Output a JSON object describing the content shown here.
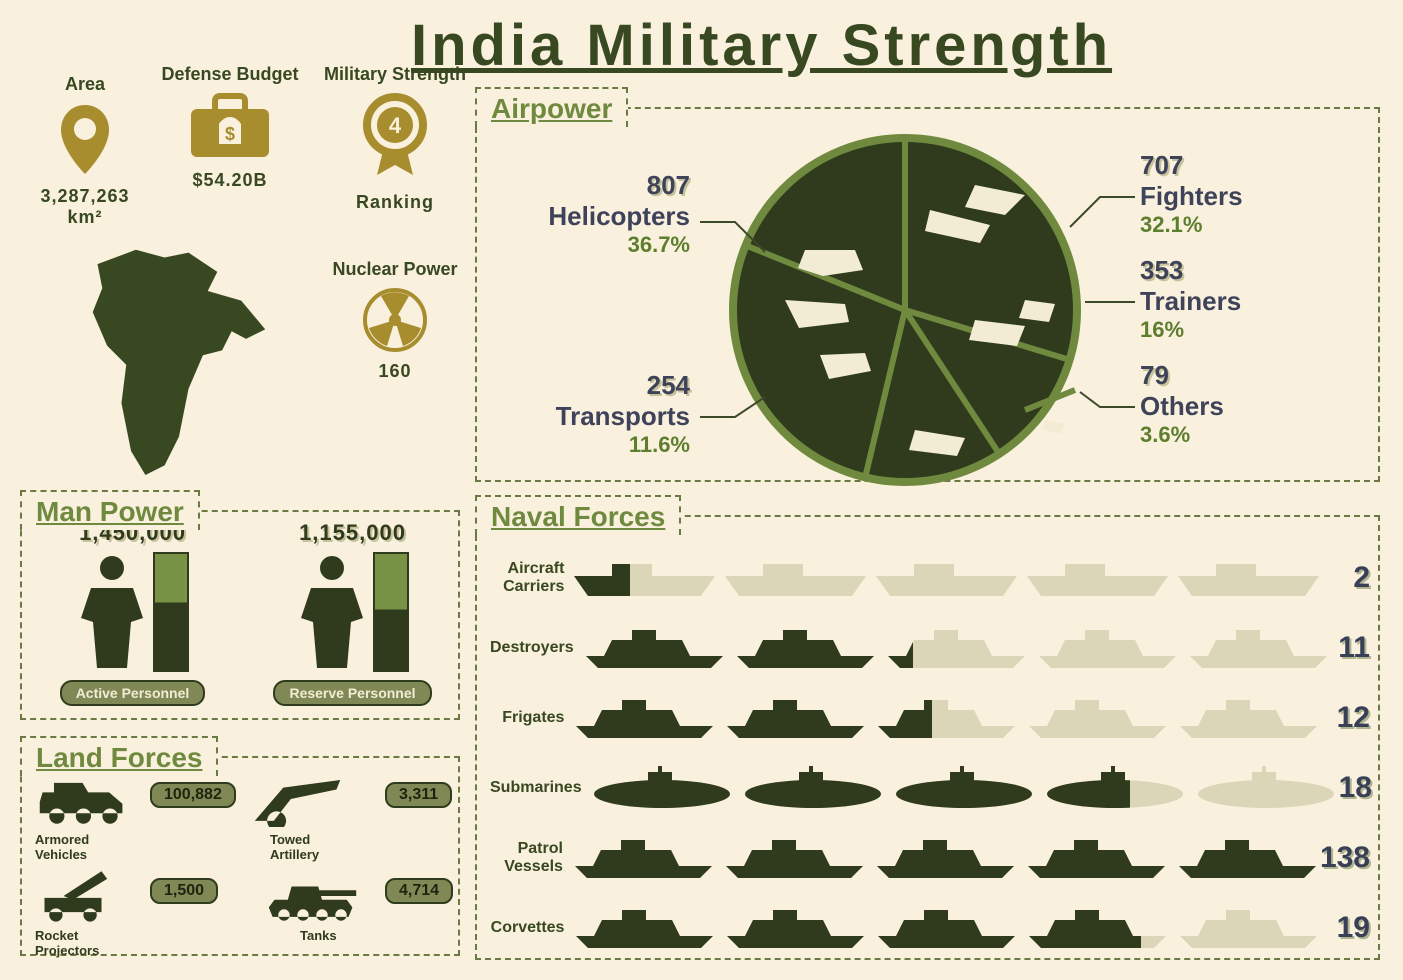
{
  "colors": {
    "bg": "#f9f0dd",
    "dark": "#384820",
    "darker": "#2f3b1c",
    "olive": "#808955",
    "accent": "#6f8a3f",
    "gold": "#a88d2f",
    "navy_text": "#3f435a",
    "faded": "#c6c29a"
  },
  "title": "India Military Strength",
  "top_stats": {
    "area": {
      "label": "Area",
      "value": "3,287,263 km²",
      "icon": "map-pin"
    },
    "budget": {
      "label": "Defense Budget",
      "value": "$54.20B",
      "icon": "briefcase-money"
    },
    "ranking": {
      "label": "Military Strength",
      "value_label": "Ranking",
      "rank": "4",
      "icon": "medal"
    },
    "nuclear": {
      "label": "Nuclear Power",
      "value": "160",
      "icon": "radiation"
    }
  },
  "manpower": {
    "title": "Man Power",
    "active": {
      "label": "Active Personnel",
      "value": "1,450,000",
      "bar_fill_pct": 58
    },
    "reserve": {
      "label": "Reserve Personnel",
      "value": "1,155,000",
      "bar_fill_pct": 52
    }
  },
  "land_forces": {
    "title": "Land Forces",
    "items": [
      {
        "label": "Armored Vehicles",
        "value": "100,882"
      },
      {
        "label": "Towed Artillery",
        "value": "3,311"
      },
      {
        "label": "Rocket Projectors",
        "value": "1,500"
      },
      {
        "label": "Tanks",
        "value": "4,714"
      }
    ]
  },
  "airpower": {
    "title": "Airpower",
    "pie_border": "#6f8a3f",
    "pie_bg": "#2f3b1c",
    "items": [
      {
        "name": "Helicopters",
        "count": "807",
        "pct": "36.7%",
        "side": "left",
        "y": 0
      },
      {
        "name": "Transports",
        "count": "254",
        "pct": "11.6%",
        "side": "left",
        "y": 1
      },
      {
        "name": "Fighters",
        "count": "707",
        "pct": "32.1%",
        "side": "right",
        "y": 0
      },
      {
        "name": "Trainers",
        "count": "353",
        "pct": "16%",
        "side": "right",
        "y": 1
      },
      {
        "name": "Others",
        "count": "79",
        "pct": "3.6%",
        "side": "right",
        "y": 2
      }
    ]
  },
  "naval": {
    "title": "Naval Forces",
    "icon_units_per_row": 5,
    "max_scale": 25,
    "rows": [
      {
        "name": "Aircraft Carriers",
        "count": 2
      },
      {
        "name": "Destroyers",
        "count": 11
      },
      {
        "name": "Frigates",
        "count": 12
      },
      {
        "name": "Submarines",
        "count": 18
      },
      {
        "name": "Patrol Vessels",
        "count": 138
      },
      {
        "name": "Corvettes",
        "count": 19
      }
    ]
  }
}
